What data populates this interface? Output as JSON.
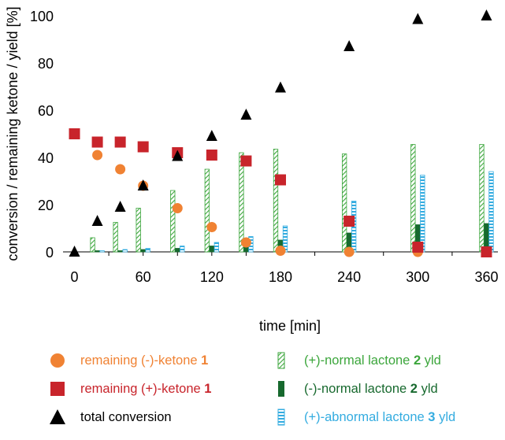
{
  "chart_data": {
    "type": "scatter+bar",
    "xlabel": "time [min]",
    "ylabel": "conversion / remaining ketone / yield [%]",
    "x_ticks": [
      0,
      60,
      120,
      180,
      240,
      300,
      360
    ],
    "y_ticks": [
      0,
      20,
      40,
      60,
      80,
      100
    ],
    "xlim": [
      -10,
      370
    ],
    "ylim": [
      0,
      100
    ],
    "grid": false,
    "legend_position": "bottom",
    "colors": {
      "orange": "#F08233",
      "red": "#C8242B",
      "black": "#000000",
      "light_green": "#3CA63C",
      "dark_green": "#17692E",
      "blue": "#34ACE0"
    },
    "series": [
      {
        "name_plain": "remaining (-)-ketone",
        "name_bold": "1",
        "name_suffix": "",
        "kind": "circle",
        "color_key": "orange",
        "x": [
          20,
          40,
          60,
          90,
          120,
          150,
          180,
          240,
          300
        ],
        "y": [
          41,
          35,
          28,
          18.5,
          10.5,
          4,
          0.5,
          0,
          0
        ]
      },
      {
        "name_plain": "remaining (+)-ketone",
        "name_bold": "1",
        "name_suffix": "",
        "kind": "square",
        "color_key": "red",
        "x": [
          0,
          20,
          40,
          60,
          90,
          120,
          150,
          180,
          240,
          300,
          360
        ],
        "y": [
          50,
          46.5,
          46.5,
          44.5,
          42,
          41,
          38.5,
          30.5,
          13,
          2,
          0
        ]
      },
      {
        "name_plain": "total conversion",
        "name_bold": "",
        "name_suffix": "",
        "kind": "triangle",
        "color_key": "black",
        "x": [
          0,
          20,
          40,
          60,
          90,
          120,
          150,
          180,
          240,
          300,
          360
        ],
        "y": [
          0,
          13,
          19,
          28,
          40.5,
          49,
          58,
          69.5,
          87,
          98.5,
          100
        ]
      },
      {
        "name_plain": "(+)-normal lactone",
        "name_bold": "2",
        "name_suffix": " yld",
        "kind": "bar-hatched",
        "color_key": "light_green",
        "offset": -3,
        "x": [
          20,
          40,
          60,
          90,
          120,
          150,
          180,
          240,
          300,
          360
        ],
        "y": [
          6,
          12.5,
          18.5,
          26,
          35,
          42,
          43.5,
          41.5,
          45.5,
          45.5
        ]
      },
      {
        "name_plain": "(-)-normal lactone",
        "name_bold": "2",
        "name_suffix": " yld",
        "kind": "bar-solid",
        "color_key": "dark_green",
        "offset": 0,
        "x": [
          20,
          40,
          60,
          90,
          120,
          150,
          180,
          240,
          300,
          360
        ],
        "y": [
          0.5,
          0.5,
          1,
          1.5,
          2.5,
          3.5,
          5,
          8,
          11.5,
          12
        ]
      },
      {
        "name_plain": "(+)-abnormal lactone",
        "name_bold": "3",
        "name_suffix": " yld",
        "kind": "bar-dashed",
        "color_key": "blue",
        "offset": 3,
        "x": [
          20,
          40,
          60,
          90,
          120,
          150,
          180,
          240,
          300,
          360
        ],
        "y": [
          0.5,
          1,
          1.5,
          2.5,
          4,
          6.5,
          11,
          21.5,
          32.5,
          34
        ]
      }
    ]
  }
}
